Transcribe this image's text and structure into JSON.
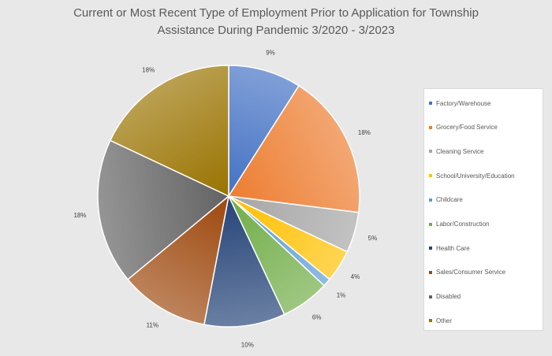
{
  "chart_data": {
    "type": "pie",
    "title_lines": [
      "Current or Most Recent Type of Employment Prior to Application for Township",
      "Assistance During Pandemic 3/2020 - 3/2023"
    ],
    "categories": [
      "Factory/Warehouse",
      "Grocery/Food Service",
      "Cleaning Service",
      "School/University/Education",
      "Childcare",
      "Labor/Construction",
      "Health Care",
      "Sales/Consumer Service",
      "Disabled",
      "Other"
    ],
    "values": [
      9,
      18,
      5,
      4,
      1,
      6,
      10,
      11,
      18,
      18
    ],
    "data_labels": [
      "9%",
      "18%",
      "5%",
      "4%",
      "1%",
      "6%",
      "10%",
      "11%",
      "18%",
      "18%"
    ],
    "colors": [
      "#4472c4",
      "#ed7d31",
      "#a5a5a5",
      "#ffc000",
      "#5b9bd5",
      "#70ad47",
      "#264478",
      "#9e480e",
      "#636363",
      "#997300"
    ],
    "start_angle_deg": 0,
    "direction": "clockwise",
    "legend_position": "right"
  }
}
